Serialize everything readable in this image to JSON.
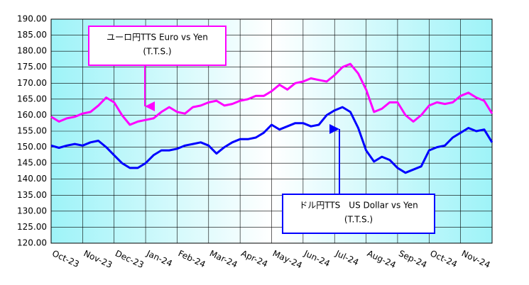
{
  "chart_data": {
    "type": "line",
    "categories": [
      "Oct-23",
      null,
      null,
      null,
      "Nov-23",
      null,
      null,
      null,
      "Dec-23",
      null,
      null,
      null,
      "Jan-24",
      null,
      null,
      null,
      "Feb-24",
      null,
      null,
      null,
      "Mar-24",
      null,
      null,
      null,
      "Apr-24",
      null,
      null,
      null,
      "May-24",
      null,
      null,
      null,
      "Jun-24",
      null,
      null,
      null,
      "Jul-24",
      null,
      null,
      null,
      "Aug-24",
      null,
      null,
      null,
      "Sep-24",
      null,
      null,
      null,
      "Oct-24",
      null,
      null,
      null,
      "Nov-24",
      null,
      null,
      null,
      null
    ],
    "series": [
      {
        "name": "Euro",
        "color": "#ff00ff",
        "values": [
          159.5,
          158,
          159,
          159.5,
          160.5,
          161,
          163,
          165.5,
          164,
          160,
          157,
          158,
          158.5,
          159,
          161,
          162.5,
          161,
          160.5,
          162.5,
          163,
          164,
          164.5,
          163,
          163.5,
          164.5,
          165,
          166,
          166,
          167.5,
          169.5,
          168,
          170,
          170.5,
          171.5,
          171,
          170.5,
          172.5,
          175,
          176,
          173,
          168,
          161,
          162,
          164,
          164,
          160,
          158,
          160,
          163,
          164,
          163.5,
          164,
          166,
          167,
          165.5,
          164.5,
          160.5
        ]
      },
      {
        "name": "USD",
        "color": "#0000ff",
        "values": [
          150.5,
          149.8,
          150.5,
          151,
          150.5,
          151.5,
          152,
          150,
          147.5,
          145,
          143.5,
          143.5,
          145,
          147.5,
          149,
          149,
          149.5,
          150.5,
          151,
          151.5,
          150.5,
          148,
          150,
          151.5,
          152.5,
          152.5,
          153,
          154.5,
          157,
          155.5,
          156.5,
          157.5,
          157.5,
          156.5,
          157,
          160,
          161.5,
          162.5,
          161,
          156,
          149,
          145.5,
          147,
          146,
          143.5,
          142,
          143,
          144,
          149,
          150,
          150.5,
          153,
          154.5,
          156,
          155,
          155.5,
          151.5
        ]
      }
    ],
    "ylim": [
      120,
      190
    ],
    "yticks": [
      {
        "value": 120,
        "label": "120.00"
      },
      {
        "value": 125,
        "label": "125.00"
      },
      {
        "value": 130,
        "label": "130.00"
      },
      {
        "value": 135,
        "label": "135.00"
      },
      {
        "value": 140,
        "label": "140.00"
      },
      {
        "value": 145,
        "label": "145.00"
      },
      {
        "value": 150,
        "label": "150.00"
      },
      {
        "value": 155,
        "label": "155.00"
      },
      {
        "value": 160,
        "label": "160.00"
      },
      {
        "value": 165,
        "label": "165.00"
      },
      {
        "value": 170,
        "label": "170.00"
      },
      {
        "value": 175,
        "label": "175.00"
      },
      {
        "value": 180,
        "label": "180.00"
      },
      {
        "value": 185,
        "label": "185.00"
      },
      {
        "value": 190,
        "label": "190.00"
      }
    ],
    "grid": true,
    "annotations": [
      {
        "lines": [
          "ユーロ円TTS Euro vs Yen",
          "(T.T.S.)"
        ],
        "color": "#ff00ff"
      },
      {
        "lines": [
          "ドル円TTS　US Dollar vs Yen",
          "(T.T.S.)"
        ],
        "color": "#0000ff"
      }
    ]
  }
}
